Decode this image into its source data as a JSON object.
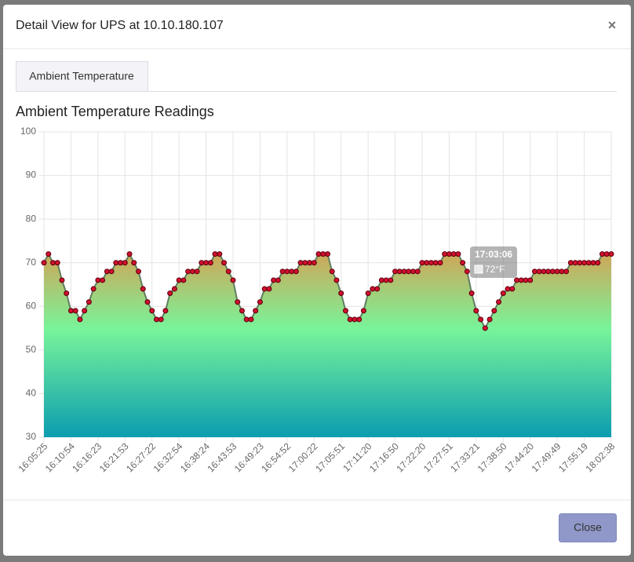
{
  "modal": {
    "title": "Detail View for UPS at 10.10.180.107",
    "close_icon": "×",
    "tab": "Ambient Temperature",
    "button": "Close"
  },
  "chart_data": {
    "type": "line",
    "title": "Ambient Temperature Readings",
    "categories": [
      "16:05:25",
      null,
      null,
      null,
      null,
      null,
      "16:10:54",
      null,
      null,
      null,
      null,
      null,
      "16:16:23",
      null,
      null,
      null,
      null,
      null,
      "16:21:53",
      null,
      null,
      null,
      null,
      null,
      "16:27:22",
      null,
      null,
      null,
      null,
      null,
      "16:32:54",
      null,
      null,
      null,
      null,
      null,
      "16:38:24",
      null,
      null,
      null,
      null,
      null,
      "16:43:53",
      null,
      null,
      null,
      null,
      null,
      "16:49:23",
      null,
      null,
      null,
      null,
      null,
      "16:54:52",
      null,
      null,
      null,
      null,
      null,
      "17:00:22",
      null,
      null,
      null,
      null,
      null,
      "17:05:51",
      null,
      null,
      null,
      null,
      null,
      "17:11:20",
      null,
      null,
      null,
      null,
      null,
      "17:16:50",
      null,
      null,
      null,
      null,
      null,
      "17:22:20",
      null,
      null,
      null,
      null,
      null,
      "17:27:51",
      null,
      null,
      null,
      null,
      null,
      "17:33:21",
      null,
      null,
      null,
      null,
      null,
      "17:38:50",
      null,
      null,
      null,
      null,
      null,
      "17:44:20",
      null,
      null,
      null,
      null,
      null,
      "17:49:49",
      null,
      null,
      null,
      null,
      null,
      "17:55:19",
      null,
      null,
      null,
      null,
      null,
      "18:02:38"
    ],
    "values": [
      70,
      72,
      70,
      70,
      66,
      63,
      59,
      59,
      57,
      59,
      61,
      64,
      66,
      66,
      68,
      68,
      70,
      70,
      70,
      72,
      70,
      68,
      64,
      61,
      59,
      57,
      57,
      59,
      63,
      64,
      66,
      66,
      68,
      68,
      68,
      70,
      70,
      70,
      72,
      72,
      70,
      68,
      66,
      61,
      59,
      57,
      57,
      59,
      61,
      64,
      64,
      66,
      66,
      68,
      68,
      68,
      68,
      70,
      70,
      70,
      70,
      72,
      72,
      72,
      68,
      66,
      63,
      59,
      57,
      57,
      57,
      59,
      63,
      64,
      64,
      66,
      66,
      66,
      68,
      68,
      68,
      68,
      68,
      68,
      70,
      70,
      70,
      70,
      70,
      72,
      72,
      72,
      72,
      70,
      68,
      63,
      59,
      57,
      55,
      57,
      59,
      61,
      63,
      64,
      64,
      66,
      66,
      66,
      66,
      68,
      68,
      68,
      68,
      68,
      68,
      68,
      68,
      70,
      70,
      70,
      70,
      70,
      70,
      70,
      72,
      72,
      72
    ],
    "color": "#5f7f60",
    "point_color": "#d0102c",
    "ylim": [
      30,
      100
    ],
    "yticks": [
      30,
      40,
      50,
      60,
      70,
      80,
      90,
      100
    ],
    "grid": true,
    "tooltip": {
      "title": "17:03:06",
      "label": "72°F"
    }
  }
}
